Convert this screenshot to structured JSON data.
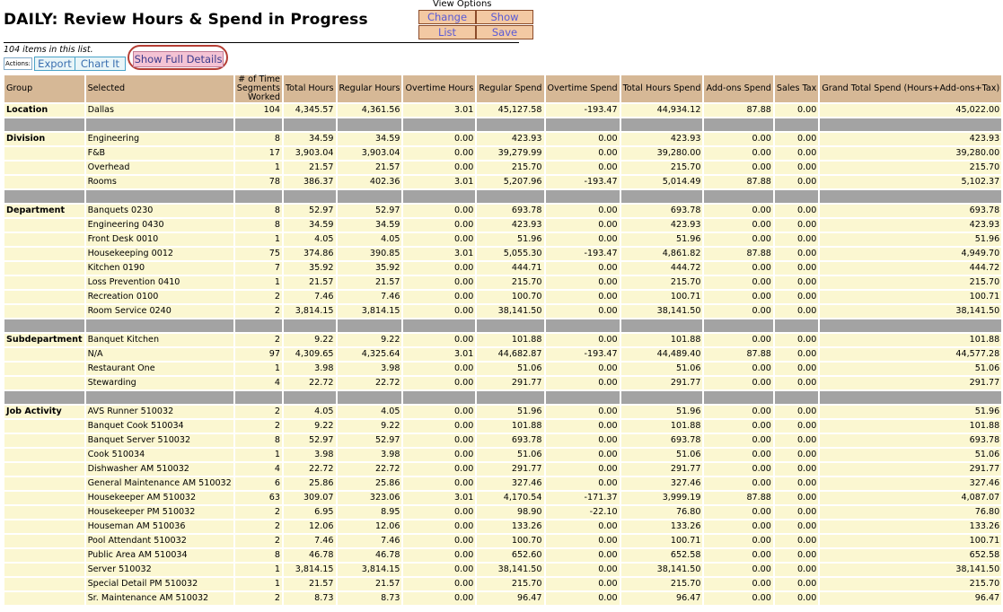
{
  "page": {
    "title": "DAILY: Review Hours & Spend in Progress"
  },
  "view_options": {
    "label": "View Options",
    "buttons": {
      "change": "Change",
      "show": "Show",
      "list": "List",
      "save": "Save"
    }
  },
  "list_info": {
    "count_text": "104 items in this list."
  },
  "actions": {
    "label": "Actions:",
    "export": "Export",
    "chart": "Chart It",
    "full_details": "Show Full Details"
  },
  "table": {
    "headers": [
      "Group",
      "Selected",
      "# of Time Segments Worked",
      "Total Hours",
      "Regular Hours",
      "Overtime Hours",
      "Regular Spend",
      "Overtime Spend",
      "Total Hours Spend",
      "Add-ons Spend",
      "Sales Tax",
      "Grand Total Spend (Hours+Add-ons+Tax)"
    ],
    "rows": [
      {
        "g": "Location",
        "s": "Dallas",
        "v": [
          "104",
          "4,345.57",
          "4,361.56",
          "3.01",
          "45,127.58",
          "-193.47",
          "44,934.12",
          "87.88",
          "0.00",
          "45,022.00"
        ]
      },
      {
        "sep": true
      },
      {
        "g": "Division",
        "s": "Engineering",
        "v": [
          "8",
          "34.59",
          "34.59",
          "0.00",
          "423.93",
          "0.00",
          "423.93",
          "0.00",
          "0.00",
          "423.93"
        ]
      },
      {
        "g": "",
        "s": "F&B",
        "v": [
          "17",
          "3,903.04",
          "3,903.04",
          "0.00",
          "39,279.99",
          "0.00",
          "39,280.00",
          "0.00",
          "0.00",
          "39,280.00"
        ]
      },
      {
        "g": "",
        "s": "Overhead",
        "v": [
          "1",
          "21.57",
          "21.57",
          "0.00",
          "215.70",
          "0.00",
          "215.70",
          "0.00",
          "0.00",
          "215.70"
        ]
      },
      {
        "g": "",
        "s": "Rooms",
        "v": [
          "78",
          "386.37",
          "402.36",
          "3.01",
          "5,207.96",
          "-193.47",
          "5,014.49",
          "87.88",
          "0.00",
          "5,102.37"
        ]
      },
      {
        "sep": true
      },
      {
        "g": "Department",
        "s": "Banquets 0230",
        "v": [
          "8",
          "52.97",
          "52.97",
          "0.00",
          "693.78",
          "0.00",
          "693.78",
          "0.00",
          "0.00",
          "693.78"
        ]
      },
      {
        "g": "",
        "s": "Engineering 0430",
        "v": [
          "8",
          "34.59",
          "34.59",
          "0.00",
          "423.93",
          "0.00",
          "423.93",
          "0.00",
          "0.00",
          "423.93"
        ]
      },
      {
        "g": "",
        "s": "Front Desk 0010",
        "v": [
          "1",
          "4.05",
          "4.05",
          "0.00",
          "51.96",
          "0.00",
          "51.96",
          "0.00",
          "0.00",
          "51.96"
        ]
      },
      {
        "g": "",
        "s": "Housekeeping 0012",
        "v": [
          "75",
          "374.86",
          "390.85",
          "3.01",
          "5,055.30",
          "-193.47",
          "4,861.82",
          "87.88",
          "0.00",
          "4,949.70"
        ]
      },
      {
        "g": "",
        "s": "Kitchen 0190",
        "v": [
          "7",
          "35.92",
          "35.92",
          "0.00",
          "444.71",
          "0.00",
          "444.72",
          "0.00",
          "0.00",
          "444.72"
        ]
      },
      {
        "g": "",
        "s": "Loss Prevention 0410",
        "v": [
          "1",
          "21.57",
          "21.57",
          "0.00",
          "215.70",
          "0.00",
          "215.70",
          "0.00",
          "0.00",
          "215.70"
        ]
      },
      {
        "g": "",
        "s": "Recreation 0100",
        "v": [
          "2",
          "7.46",
          "7.46",
          "0.00",
          "100.70",
          "0.00",
          "100.71",
          "0.00",
          "0.00",
          "100.71"
        ]
      },
      {
        "g": "",
        "s": "Room Service 0240",
        "v": [
          "2",
          "3,814.15",
          "3,814.15",
          "0.00",
          "38,141.50",
          "0.00",
          "38,141.50",
          "0.00",
          "0.00",
          "38,141.50"
        ]
      },
      {
        "sep": true
      },
      {
        "g": "Subdepartment",
        "s": "Banquet Kitchen",
        "v": [
          "2",
          "9.22",
          "9.22",
          "0.00",
          "101.88",
          "0.00",
          "101.88",
          "0.00",
          "0.00",
          "101.88"
        ]
      },
      {
        "g": "",
        "s": "N/A",
        "v": [
          "97",
          "4,309.65",
          "4,325.64",
          "3.01",
          "44,682.87",
          "-193.47",
          "44,489.40",
          "87.88",
          "0.00",
          "44,577.28"
        ]
      },
      {
        "g": "",
        "s": "Restaurant One",
        "v": [
          "1",
          "3.98",
          "3.98",
          "0.00",
          "51.06",
          "0.00",
          "51.06",
          "0.00",
          "0.00",
          "51.06"
        ]
      },
      {
        "g": "",
        "s": "Stewarding",
        "v": [
          "4",
          "22.72",
          "22.72",
          "0.00",
          "291.77",
          "0.00",
          "291.77",
          "0.00",
          "0.00",
          "291.77"
        ]
      },
      {
        "sep": true
      },
      {
        "g": "Job Activity",
        "s": "AVS Runner 510032",
        "v": [
          "2",
          "4.05",
          "4.05",
          "0.00",
          "51.96",
          "0.00",
          "51.96",
          "0.00",
          "0.00",
          "51.96"
        ]
      },
      {
        "g": "",
        "s": "Banquet Cook 510034",
        "v": [
          "2",
          "9.22",
          "9.22",
          "0.00",
          "101.88",
          "0.00",
          "101.88",
          "0.00",
          "0.00",
          "101.88"
        ]
      },
      {
        "g": "",
        "s": "Banquet Server 510032",
        "v": [
          "8",
          "52.97",
          "52.97",
          "0.00",
          "693.78",
          "0.00",
          "693.78",
          "0.00",
          "0.00",
          "693.78"
        ]
      },
      {
        "g": "",
        "s": "Cook 510034",
        "v": [
          "1",
          "3.98",
          "3.98",
          "0.00",
          "51.06",
          "0.00",
          "51.06",
          "0.00",
          "0.00",
          "51.06"
        ]
      },
      {
        "g": "",
        "s": "Dishwasher AM 510032",
        "v": [
          "4",
          "22.72",
          "22.72",
          "0.00",
          "291.77",
          "0.00",
          "291.77",
          "0.00",
          "0.00",
          "291.77"
        ]
      },
      {
        "g": "",
        "s": "General Maintenance AM 510032",
        "v": [
          "6",
          "25.86",
          "25.86",
          "0.00",
          "327.46",
          "0.00",
          "327.46",
          "0.00",
          "0.00",
          "327.46"
        ]
      },
      {
        "g": "",
        "s": "Housekeeper AM 510032",
        "v": [
          "63",
          "309.07",
          "323.06",
          "3.01",
          "4,170.54",
          "-171.37",
          "3,999.19",
          "87.88",
          "0.00",
          "4,087.07"
        ]
      },
      {
        "g": "",
        "s": "Housekeeper PM 510032",
        "v": [
          "2",
          "6.95",
          "8.95",
          "0.00",
          "98.90",
          "-22.10",
          "76.80",
          "0.00",
          "0.00",
          "76.80"
        ]
      },
      {
        "g": "",
        "s": "Houseman AM 510036",
        "v": [
          "2",
          "12.06",
          "12.06",
          "0.00",
          "133.26",
          "0.00",
          "133.26",
          "0.00",
          "0.00",
          "133.26"
        ]
      },
      {
        "g": "",
        "s": "Pool Attendant 510032",
        "v": [
          "2",
          "7.46",
          "7.46",
          "0.00",
          "100.70",
          "0.00",
          "100.71",
          "0.00",
          "0.00",
          "100.71"
        ]
      },
      {
        "g": "",
        "s": "Public Area AM 510034",
        "v": [
          "8",
          "46.78",
          "46.78",
          "0.00",
          "652.60",
          "0.00",
          "652.58",
          "0.00",
          "0.00",
          "652.58"
        ]
      },
      {
        "g": "",
        "s": "Server 510032",
        "v": [
          "1",
          "3,814.15",
          "3,814.15",
          "0.00",
          "38,141.50",
          "0.00",
          "38,141.50",
          "0.00",
          "0.00",
          "38,141.50"
        ]
      },
      {
        "g": "",
        "s": "Special Detail PM 510032",
        "v": [
          "1",
          "21.57",
          "21.57",
          "0.00",
          "215.70",
          "0.00",
          "215.70",
          "0.00",
          "0.00",
          "215.70"
        ]
      },
      {
        "g": "",
        "s": "Sr. Maintenance AM 510032",
        "v": [
          "2",
          "8.73",
          "8.73",
          "0.00",
          "96.47",
          "0.00",
          "96.47",
          "0.00",
          "0.00",
          "96.47"
        ]
      }
    ]
  }
}
